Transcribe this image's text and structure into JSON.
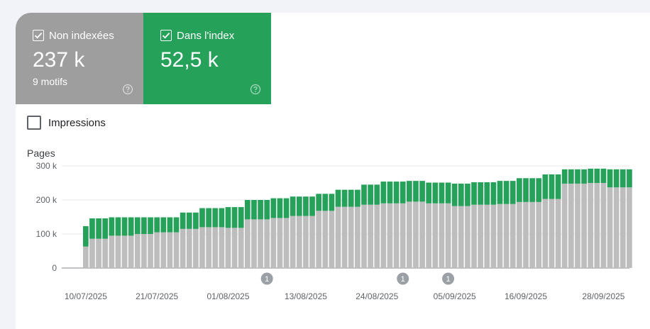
{
  "cards": {
    "not_indexed": {
      "label": "Non indexées",
      "value": "237 k",
      "sub": "9 motifs",
      "color": "#9e9e9e"
    },
    "indexed": {
      "label": "Dans l'index",
      "value": "52,5 k",
      "color": "#25a15a"
    }
  },
  "impressions_label": "Impressions",
  "icons": {
    "checkbox": "check-icon",
    "help": "help-circle-icon"
  },
  "chart_data": {
    "type": "bar",
    "stacked": true,
    "ylabel": "Pages",
    "ylim": [
      0,
      300000
    ],
    "yticks": [
      0,
      100000,
      200000,
      300000
    ],
    "ytick_labels": [
      "0",
      "100 k",
      "200 k",
      "300 k"
    ],
    "xtick_labels": [
      {
        "index": 0,
        "label": "10/07/2025"
      },
      {
        "index": 11,
        "label": "21/07/2025"
      },
      {
        "index": 22,
        "label": "01/08/2025"
      },
      {
        "index": 34,
        "label": "13/08/2025"
      },
      {
        "index": 45,
        "label": "24/08/2025"
      },
      {
        "index": 57,
        "label": "05/09/2025"
      },
      {
        "index": 68,
        "label": "16/09/2025"
      },
      {
        "index": 80,
        "label": "28/09/2025"
      }
    ],
    "annotations": [
      {
        "index": 28,
        "label": "1"
      },
      {
        "index": 49,
        "label": "1"
      },
      {
        "index": 56,
        "label": "1"
      }
    ],
    "series": [
      {
        "name": "Non indexées",
        "color": "#bdbdbd",
        "values": [
          63000,
          86000,
          86000,
          86000,
          95000,
          95000,
          95000,
          95000,
          100000,
          100000,
          100000,
          105000,
          105000,
          105000,
          105000,
          115000,
          115000,
          115000,
          120000,
          120000,
          120000,
          120000,
          118000,
          118000,
          118000,
          143000,
          143000,
          143000,
          143000,
          147000,
          147000,
          147000,
          153000,
          153000,
          153000,
          153000,
          168000,
          168000,
          168000,
          180000,
          180000,
          180000,
          180000,
          186000,
          186000,
          186000,
          190000,
          190000,
          190000,
          190000,
          195000,
          195000,
          195000,
          190000,
          190000,
          190000,
          190000,
          182000,
          182000,
          182000,
          186000,
          186000,
          186000,
          186000,
          188000,
          188000,
          188000,
          194000,
          194000,
          194000,
          194000,
          203000,
          203000,
          203000,
          248000,
          248000,
          248000,
          248000,
          250000,
          250000,
          250000,
          237000,
          237000,
          237000,
          237000
        ]
      },
      {
        "name": "Dans l'index",
        "color": "#25a15a",
        "values": [
          60000,
          60000,
          60000,
          60000,
          54000,
          54000,
          54000,
          54000,
          49000,
          49000,
          49000,
          44000,
          44000,
          44000,
          44000,
          48000,
          48000,
          48000,
          56000,
          56000,
          56000,
          56000,
          61000,
          61000,
          61000,
          57000,
          57000,
          57000,
          57000,
          58000,
          58000,
          58000,
          57000,
          57000,
          57000,
          57000,
          50000,
          50000,
          50000,
          50000,
          50000,
          50000,
          50000,
          59000,
          59000,
          59000,
          64000,
          64000,
          64000,
          64000,
          61000,
          61000,
          61000,
          61000,
          61000,
          61000,
          61000,
          66000,
          66000,
          66000,
          66000,
          66000,
          66000,
          66000,
          68000,
          68000,
          68000,
          70000,
          70000,
          70000,
          70000,
          72000,
          72000,
          72000,
          42000,
          42000,
          42000,
          42000,
          42000,
          42000,
          42000,
          53000,
          53000,
          53000,
          53000
        ]
      }
    ]
  }
}
